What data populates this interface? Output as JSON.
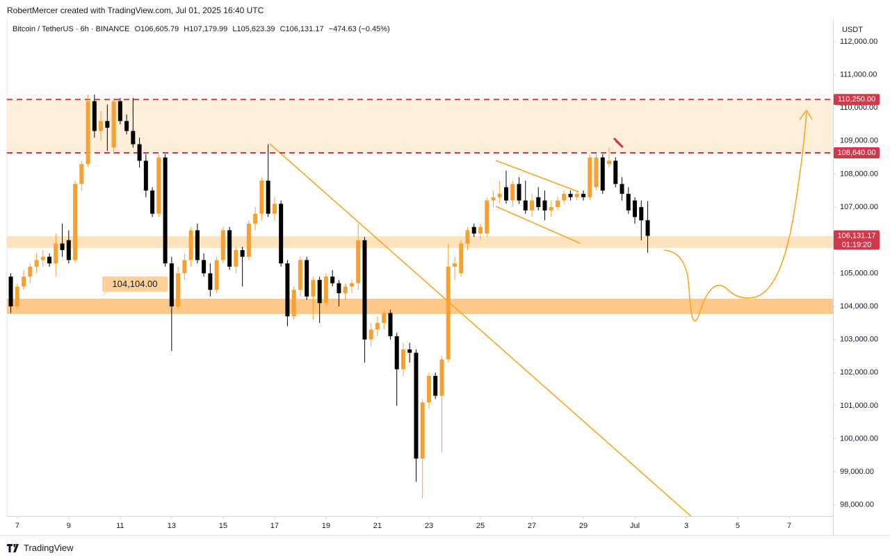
{
  "header": "RobertMercer created with TradingView.com, Jul 01, 2025 16:40 UTC",
  "footer": "TradingView",
  "chart_data": {
    "type": "candlestick",
    "symbol": "Bitcoin / TetherUS · 6h · BINANCE",
    "ohlc_labels": [
      "O106,605.79",
      "H107,179.99",
      "L105,623.39",
      "C106,131.17",
      "−474.63 (−0.45%)"
    ],
    "currency": "USDT",
    "up_color": "#f7a033",
    "down_color": "#000000",
    "xlim": [
      6.6,
      38.7
    ],
    "xticks": [
      7,
      9,
      11,
      13,
      15,
      17,
      19,
      21,
      23,
      25,
      27,
      29,
      {
        "value": 31,
        "label": "Jul"
      },
      {
        "value": 33,
        "label": "3"
      },
      {
        "value": 35,
        "label": "5"
      },
      {
        "value": 37,
        "label": "7"
      }
    ],
    "ylim": [
      97660,
      112670
    ],
    "yticks": [
      {
        "value": 98000,
        "label": "98,000.00"
      },
      {
        "value": 99000,
        "label": "99,000.00"
      },
      {
        "value": 100000,
        "label": "100,000.00"
      },
      {
        "value": 101000,
        "label": "101,000.00"
      },
      {
        "value": 102000,
        "label": "102,000.00"
      },
      {
        "value": 103000,
        "label": "103,000.00"
      },
      {
        "value": 104000,
        "label": "104,000.00"
      },
      {
        "value": 105000,
        "label": "105,000.00"
      },
      {
        "value": 106000,
        "label": "106,000.00"
      },
      {
        "value": 107000,
        "label": "107,000.00"
      },
      {
        "value": 108000,
        "label": "108,000.00"
      },
      {
        "value": 109000,
        "label": "109,000.00"
      },
      {
        "value": 110000,
        "label": "110,000.00"
      },
      {
        "value": 111000,
        "label": "111,000.00"
      },
      {
        "value": 112000,
        "label": "112,000.00"
      }
    ],
    "levels": [
      {
        "value": 110250,
        "label": "110,250.00"
      },
      {
        "value": 108640,
        "label": "108,640.00"
      }
    ],
    "level_color": "#d0384b",
    "last_price": {
      "value": 106131.17,
      "label": "106,131.17"
    },
    "countdown": "01:19:20",
    "annotation": "104,104.00",
    "x": [
      6.75,
      7,
      7.25,
      7.5,
      7.75,
      8,
      8.25,
      8.5,
      8.75,
      9,
      9.25,
      9.5,
      9.75,
      10,
      10.25,
      10.5,
      10.75,
      11,
      11.25,
      11.5,
      11.75,
      12,
      12.25,
      12.5,
      12.75,
      13,
      13.25,
      13.5,
      13.75,
      14,
      14.25,
      14.5,
      14.75,
      15,
      15.25,
      15.5,
      15.75,
      16,
      16.25,
      16.5,
      16.75,
      17,
      17.25,
      17.5,
      17.75,
      18,
      18.25,
      18.5,
      18.75,
      19,
      19.25,
      19.5,
      19.75,
      20,
      20.25,
      20.5,
      20.75,
      21,
      21.25,
      21.5,
      21.75,
      22,
      22.25,
      22.5,
      22.75,
      23,
      23.25,
      23.5,
      23.75,
      24,
      24.25,
      24.5,
      24.75,
      25,
      25.25,
      25.5,
      25.75,
      26,
      26.25,
      26.5,
      26.75,
      27,
      27.25,
      27.5,
      27.75,
      28,
      28.25,
      28.5,
      28.75,
      29,
      29.25,
      29.5,
      29.75,
      30,
      30.25,
      30.5,
      30.75,
      31,
      31.25,
      31.5
    ],
    "candles": [
      [
        104900,
        105000,
        103800,
        104000
      ],
      [
        104000,
        104700,
        103900,
        104600
      ],
      [
        104600,
        105100,
        104500,
        104900
      ],
      [
        104900,
        105300,
        104700,
        105200
      ],
      [
        105200,
        105600,
        105000,
        105400
      ],
      [
        105400,
        105700,
        105200,
        105500
      ],
      [
        105500,
        105600,
        105200,
        105300
      ],
      [
        105300,
        106200,
        104900,
        105900
      ],
      [
        105900,
        106500,
        105500,
        105700
      ],
      [
        106000,
        106300,
        105300,
        105400
      ],
      [
        105400,
        107800,
        105300,
        107700
      ],
      [
        107700,
        108400,
        107500,
        108300
      ],
      [
        108300,
        110400,
        108200,
        110200
      ],
      [
        110200,
        110400,
        109100,
        109300
      ],
      [
        109300,
        109900,
        109000,
        109600
      ],
      [
        109600,
        110100,
        108700,
        109400
      ],
      [
        108800,
        110300,
        108600,
        110200
      ],
      [
        110200,
        110300,
        109500,
        109600
      ],
      [
        109600,
        109800,
        109200,
        109300
      ],
      [
        109300,
        110300,
        108800,
        108900
      ],
      [
        108900,
        109100,
        108200,
        108400
      ],
      [
        108400,
        108600,
        107300,
        107500
      ],
      [
        107500,
        107600,
        106700,
        106800
      ],
      [
        106800,
        108600,
        106700,
        108500
      ],
      [
        108500,
        108600,
        105200,
        105300
      ],
      [
        105300,
        105500,
        102650,
        104000
      ],
      [
        104000,
        105200,
        103900,
        105000
      ],
      [
        105000,
        105600,
        104800,
        105400
      ],
      [
        105400,
        106400,
        105200,
        106300
      ],
      [
        106300,
        106500,
        105300,
        105400
      ],
      [
        105400,
        105600,
        104900,
        105000
      ],
      [
        105000,
        105300,
        104300,
        104500
      ],
      [
        104500,
        105500,
        104400,
        105400
      ],
      [
        105400,
        106400,
        105300,
        106300
      ],
      [
        106300,
        106400,
        105100,
        105200
      ],
      [
        105200,
        105800,
        105000,
        105700
      ],
      [
        105700,
        105800,
        104600,
        105500
      ],
      [
        105500,
        106600,
        105400,
        106500
      ],
      [
        106500,
        107000,
        106300,
        106800
      ],
      [
        106800,
        107900,
        106600,
        107800
      ],
      [
        107800,
        108900,
        106700,
        106800
      ],
      [
        106800,
        107300,
        106600,
        107100
      ],
      [
        107100,
        107200,
        105200,
        105300
      ],
      [
        105300,
        105400,
        103400,
        103700
      ],
      [
        103700,
        104600,
        103600,
        104500
      ],
      [
        104500,
        105500,
        104300,
        105400
      ],
      [
        105400,
        105500,
        104200,
        104300
      ],
      [
        104300,
        104900,
        103600,
        104800
      ],
      [
        104800,
        104900,
        103500,
        104100
      ],
      [
        104100,
        105000,
        104000,
        104900
      ],
      [
        104900,
        105100,
        104600,
        104700
      ],
      [
        104700,
        104800,
        104000,
        104400
      ],
      [
        104400,
        104700,
        104200,
        104600
      ],
      [
        104600,
        104800,
        104400,
        104700
      ],
      [
        104700,
        106500,
        104500,
        106000
      ],
      [
        106000,
        106100,
        102300,
        103000
      ],
      [
        103000,
        103500,
        102800,
        103300
      ],
      [
        103300,
        103700,
        103100,
        103500
      ],
      [
        103500,
        103900,
        103300,
        103800
      ],
      [
        103800,
        103900,
        103000,
        103100
      ],
      [
        103100,
        103200,
        101000,
        102100
      ],
      [
        102100,
        102900,
        101900,
        102700
      ],
      [
        102700,
        102900,
        102300,
        102600
      ],
      [
        102600,
        102700,
        98700,
        99400
      ],
      [
        99400,
        101200,
        98200,
        101100
      ],
      [
        101100,
        102000,
        100900,
        101900
      ],
      [
        101900,
        102000,
        101200,
        101300
      ],
      [
        101300,
        102500,
        99600,
        102400
      ],
      [
        102400,
        105900,
        102300,
        105200
      ],
      [
        105200,
        105500,
        104800,
        105300
      ],
      [
        105000,
        106000,
        104900,
        105900
      ],
      [
        105900,
        106400,
        105700,
        106300
      ],
      [
        106400,
        106500,
        106100,
        106200
      ],
      [
        106200,
        106500,
        106000,
        106400
      ],
      [
        106200,
        107300,
        106100,
        107200
      ],
      [
        107200,
        107500,
        107000,
        107300
      ],
      [
        107300,
        107800,
        107100,
        107400
      ],
      [
        107600,
        108100,
        107100,
        107200
      ],
      [
        107200,
        107800,
        107000,
        107700
      ],
      [
        107700,
        107900,
        107100,
        107200
      ],
      [
        107200,
        107800,
        106800,
        106900
      ],
      [
        106900,
        107400,
        106700,
        107200
      ],
      [
        107300,
        107600,
        106900,
        107000
      ],
      [
        107200,
        107500,
        106600,
        106900
      ],
      [
        106900,
        107200,
        106700,
        107000
      ],
      [
        107000,
        107300,
        106900,
        107200
      ],
      [
        107200,
        107500,
        107100,
        107400
      ],
      [
        107400,
        107500,
        107200,
        107300
      ],
      [
        107300,
        107500,
        107200,
        107400
      ],
      [
        107400,
        107500,
        107200,
        107300
      ],
      [
        107300,
        108600,
        107200,
        108500
      ],
      [
        107600,
        108600,
        107500,
        108500
      ],
      [
        108500,
        108600,
        107400,
        107500
      ],
      [
        108300,
        108800,
        108200,
        108400
      ],
      [
        108400,
        108500,
        107600,
        107700
      ],
      [
        107700,
        107900,
        107200,
        107400
      ],
      [
        107400,
        107600,
        106800,
        106900
      ],
      [
        107200,
        107300,
        106500,
        106700
      ],
      [
        107000,
        107200,
        106000,
        106600
      ],
      [
        106605.79,
        107179.99,
        105623.39,
        106131.17
      ]
    ]
  }
}
